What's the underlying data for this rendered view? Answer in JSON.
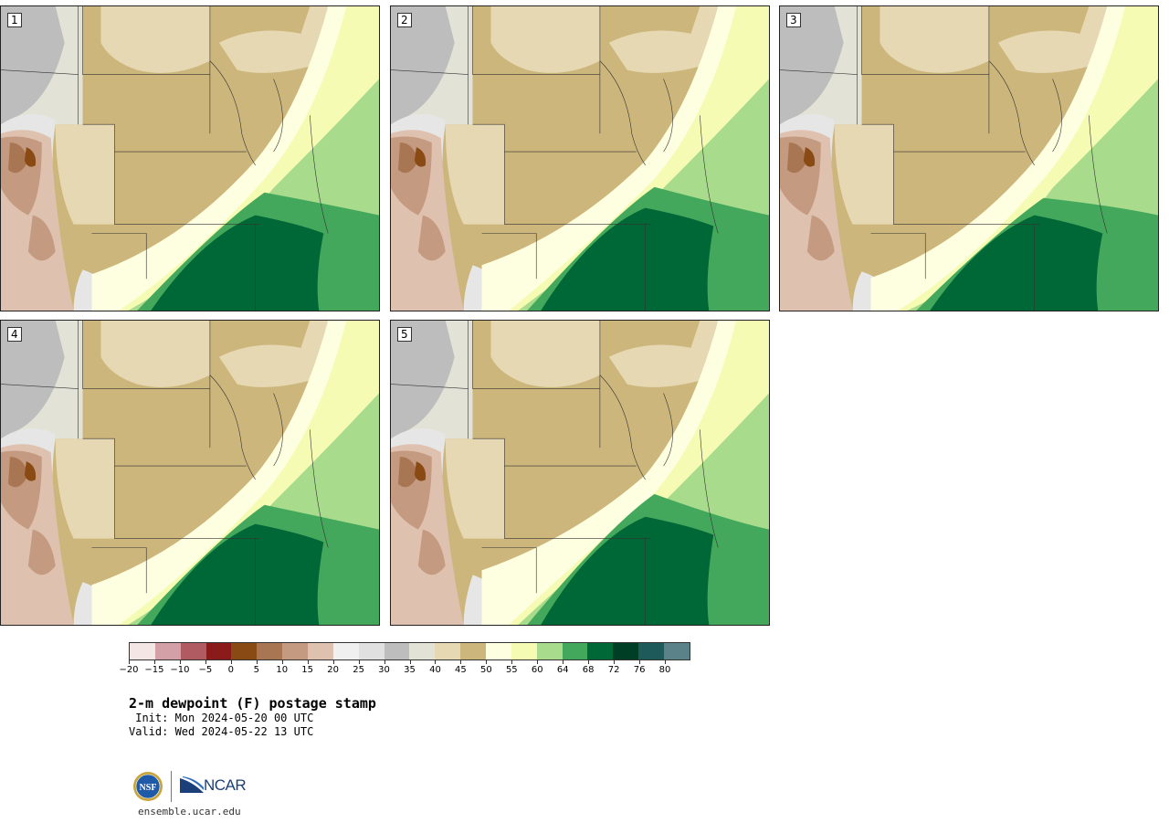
{
  "panels": [
    {
      "label": "1",
      "variant": 0
    },
    {
      "label": "2",
      "variant": 1
    },
    {
      "label": "3",
      "variant": 2
    },
    {
      "label": "4",
      "variant": 3
    },
    {
      "label": "5",
      "variant": 4
    }
  ],
  "colorbar": {
    "colors": [
      "#f5e6e6",
      "#d4a0a8",
      "#b05a62",
      "#8b1a1a",
      "#8a4a14",
      "#a97654",
      "#c49a80",
      "#dfc1b0",
      "#f0f0f0",
      "#e0e0e0",
      "#bdbdbd",
      "#e2e2d6",
      "#e6d8b2",
      "#ccb67c",
      "#fefee0",
      "#f6fbb4",
      "#a8dc8c",
      "#44a85c",
      "#006837",
      "#003f26",
      "#1e5a5a",
      "#5b8288"
    ],
    "tick_labels": [
      "-20",
      "-15",
      "-10",
      "-5",
      "0",
      "5",
      "10",
      "15",
      "20",
      "25",
      "30",
      "35",
      "40",
      "45",
      "50",
      "55",
      "60",
      "64",
      "68",
      "72",
      "76",
      "80"
    ]
  },
  "title": "2-m dewpoint (F) postage stamp",
  "init": " Init: Mon 2024-05-20 00 UTC",
  "valid": "Valid: Wed 2024-05-22 13 UTC",
  "logos": {
    "nsf_text": "NSF",
    "ncar_text": "NCAR"
  },
  "website": "ensemble.ucar.edu"
}
